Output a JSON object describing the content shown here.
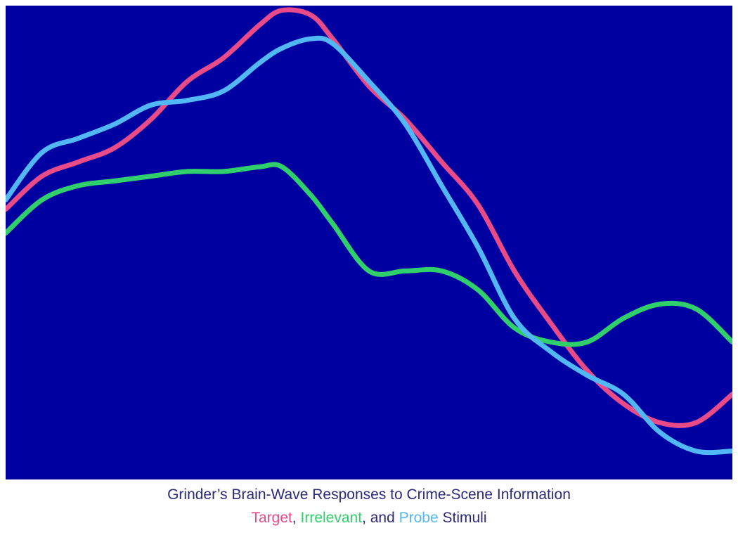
{
  "colors": {
    "plot_background": "#0000a0",
    "caption_text": "#2b2a7a",
    "target": "#e94a88",
    "irrelevant": "#2fd06c",
    "probe": "#52b8f5"
  },
  "caption": {
    "title": "Grinder’s Brain-Wave Responses to Crime-Scene Information",
    "line2": {
      "target": "Target",
      "sep1": ", ",
      "irrelevant": "Irrelevant",
      "sep2": ", and ",
      "probe": "Probe",
      "suffix": " Stimuli"
    }
  },
  "chart_data": {
    "type": "line",
    "title": "Grinder’s Brain-Wave Responses to Crime-Scene Information",
    "xlabel": "",
    "ylabel": "",
    "xlim": [
      0,
      1
    ],
    "ylim": [
      0,
      1
    ],
    "grid": false,
    "axes_visible": false,
    "x": [
      0.0,
      0.05,
      0.1,
      0.15,
      0.2,
      0.25,
      0.3,
      0.35,
      0.38,
      0.42,
      0.45,
      0.5,
      0.55,
      0.6,
      0.65,
      0.7,
      0.75,
      0.8,
      0.85,
      0.9,
      0.95,
      1.0
    ],
    "series": [
      {
        "name": "Target",
        "color": "#e94a88",
        "values": [
          0.57,
          0.64,
          0.67,
          0.7,
          0.76,
          0.84,
          0.89,
          0.96,
          0.99,
          0.98,
          0.93,
          0.83,
          0.76,
          0.67,
          0.58,
          0.44,
          0.33,
          0.23,
          0.16,
          0.12,
          0.12,
          0.18
        ]
      },
      {
        "name": "Irrelevant",
        "color": "#2fd06c",
        "values": [
          0.52,
          0.59,
          0.62,
          0.63,
          0.64,
          0.65,
          0.65,
          0.66,
          0.66,
          0.6,
          0.54,
          0.44,
          0.44,
          0.44,
          0.4,
          0.32,
          0.29,
          0.29,
          0.34,
          0.37,
          0.36,
          0.29
        ]
      },
      {
        "name": "Probe",
        "color": "#52b8f5",
        "values": [
          0.59,
          0.69,
          0.72,
          0.75,
          0.79,
          0.8,
          0.82,
          0.88,
          0.91,
          0.93,
          0.92,
          0.84,
          0.75,
          0.62,
          0.49,
          0.34,
          0.27,
          0.22,
          0.18,
          0.1,
          0.06,
          0.06
        ]
      }
    ]
  }
}
